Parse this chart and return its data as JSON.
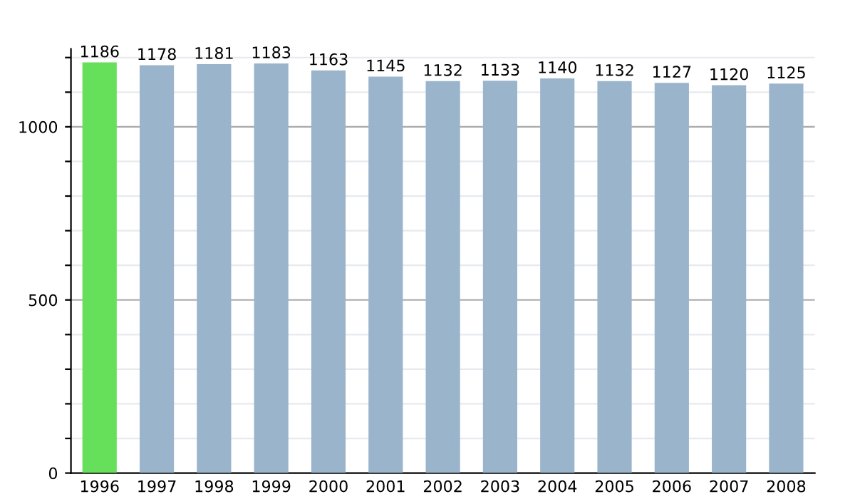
{
  "chart_data": {
    "type": "bar",
    "categories": [
      "1996",
      "1997",
      "1998",
      "1999",
      "2000",
      "2001",
      "2002",
      "2003",
      "2004",
      "2005",
      "2006",
      "2007",
      "2008"
    ],
    "values": [
      1186,
      1178,
      1181,
      1183,
      1163,
      1145,
      1132,
      1133,
      1140,
      1132,
      1127,
      1120,
      1125
    ],
    "colors": [
      "#66e05a",
      "#9ab4cc",
      "#9ab4cc",
      "#9ab4cc",
      "#9ab4cc",
      "#9ab4cc",
      "#9ab4cc",
      "#9ab4cc",
      "#9ab4cc",
      "#9ab4cc",
      "#9ab4cc",
      "#9ab4cc",
      "#9ab4cc"
    ],
    "ylim": [
      0,
      1225
    ],
    "yticks": [
      0,
      {
        "value": 100,
        "label": null
      },
      {
        "value": 200,
        "label": null
      },
      {
        "value": 300,
        "label": null
      },
      {
        "value": 400,
        "label": null
      },
      500,
      {
        "value": 600,
        "label": null
      },
      {
        "value": 700,
        "label": null
      },
      {
        "value": 800,
        "label": null
      },
      {
        "value": 900,
        "label": null
      },
      1000,
      {
        "value": 1100,
        "label": null
      },
      {
        "value": 1200,
        "label": null
      }
    ],
    "grid": "y",
    "data_labels": true,
    "legend": false
  }
}
